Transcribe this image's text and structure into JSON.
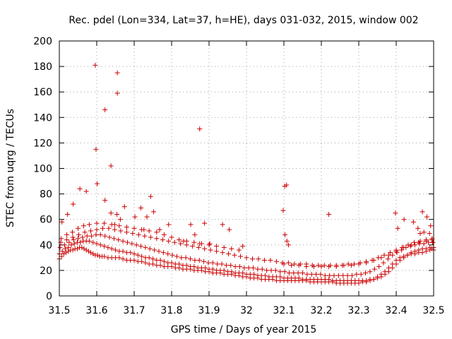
{
  "chart_data": {
    "type": "scatter",
    "title": "Rec. pdel (Lon=334, Lat=37, h=HE), days 031-032, 2015, window 002",
    "xlabel": "GPS time / Days of year 2015",
    "ylabel": "STEC from uqrg / TECUs",
    "xlim": [
      31.5,
      32.5
    ],
    "ylim": [
      0,
      200
    ],
    "xticks": [
      31.5,
      31.6,
      31.7,
      31.8,
      31.9,
      32,
      32.1,
      32.2,
      32.3,
      32.4,
      32.5
    ],
    "xtick_labels": [
      "31.5",
      "31.6",
      "31.7",
      "31.8",
      "31.9",
      "32",
      "32.1",
      "32.2",
      "32.3",
      "32.4",
      "32.5"
    ],
    "yticks": [
      0,
      20,
      40,
      60,
      80,
      100,
      120,
      140,
      160,
      180,
      200
    ],
    "ytick_labels": [
      "0",
      "20",
      "40",
      "60",
      "80",
      "100",
      "120",
      "140",
      "160",
      "180",
      "200"
    ],
    "grid": true,
    "marker": "+",
    "color": "#cc0000",
    "series": [
      {
        "name": "STEC",
        "x": [
          31.5,
          31.506,
          31.512,
          31.518,
          31.524,
          31.53,
          31.536,
          31.542,
          31.548,
          31.554,
          31.56,
          31.566,
          31.572,
          31.578,
          31.584,
          31.59,
          31.596,
          31.602,
          31.608,
          31.614,
          31.62,
          31.63,
          31.64,
          31.65,
          31.66,
          31.67,
          31.68,
          31.69,
          31.7,
          31.71,
          31.72,
          31.73,
          31.74,
          31.75,
          31.76,
          31.77,
          31.78,
          31.79,
          31.8,
          31.81,
          31.82,
          31.83,
          31.84,
          31.85,
          31.86,
          31.87,
          31.88,
          31.89,
          31.9,
          31.91,
          31.92,
          31.93,
          31.94,
          31.95,
          31.96,
          31.97,
          31.98,
          31.99,
          32.0,
          32.01,
          32.02,
          32.03,
          32.04,
          32.05,
          32.06,
          32.07,
          32.08,
          32.09,
          32.1,
          32.11,
          32.12,
          32.13,
          32.14,
          32.15,
          32.16,
          32.17,
          32.18,
          32.19,
          32.2,
          32.21,
          32.22,
          32.23,
          32.24,
          32.25,
          32.26,
          32.27,
          32.28,
          32.29,
          32.3,
          32.31,
          32.32,
          32.33,
          32.34,
          32.35,
          32.36,
          32.37,
          32.38,
          32.39,
          32.4,
          32.41,
          32.42,
          32.43,
          32.44,
          32.45,
          32.46,
          32.47,
          32.48,
          32.49,
          32.5,
          31.5,
          31.508,
          31.516,
          31.524,
          31.532,
          31.54,
          31.548,
          31.556,
          31.564,
          31.572,
          31.58,
          31.59,
          31.6,
          31.61,
          31.62,
          31.63,
          31.64,
          31.65,
          31.66,
          31.67,
          31.68,
          31.69,
          31.7,
          31.71,
          31.72,
          31.73,
          31.74,
          31.75,
          31.76,
          31.77,
          31.78,
          31.79,
          31.8,
          31.81,
          31.82,
          31.83,
          31.84,
          31.85,
          31.86,
          31.87,
          31.88,
          31.89,
          31.9,
          31.91,
          31.92,
          31.93,
          31.94,
          31.95,
          31.96,
          31.97,
          31.98,
          31.99,
          32.0,
          32.01,
          32.02,
          32.03,
          32.04,
          32.05,
          32.06,
          32.07,
          32.08,
          32.09,
          32.1,
          32.11,
          32.12,
          32.13,
          32.14,
          32.15,
          32.16,
          32.17,
          32.18,
          32.19,
          32.2,
          32.21,
          32.22,
          32.23,
          32.24,
          32.25,
          32.26,
          32.27,
          32.28,
          32.29,
          32.3,
          32.31,
          32.32,
          32.33,
          32.34,
          32.35,
          32.36,
          32.37,
          32.38,
          32.39,
          32.4,
          32.41,
          32.42,
          32.43,
          32.44,
          32.45,
          32.46,
          32.47,
          32.48,
          32.49,
          32.5,
          31.502,
          31.514,
          31.526,
          31.538,
          31.55,
          31.562,
          31.574,
          31.586,
          31.598,
          31.61,
          31.622,
          31.634,
          31.646,
          31.658,
          31.67,
          31.682,
          31.694,
          31.706,
          31.718,
          31.73,
          31.742,
          31.754,
          31.766,
          31.778,
          31.79,
          31.802,
          31.814,
          31.826,
          31.838,
          31.85,
          31.862,
          31.874,
          31.886,
          31.898,
          31.91,
          31.922,
          31.934,
          31.946,
          31.958,
          31.97,
          31.982,
          31.994,
          32.006,
          32.018,
          32.03,
          32.042,
          32.054,
          32.066,
          32.078,
          32.09,
          32.102,
          32.114,
          32.126,
          32.138,
          32.15,
          32.162,
          32.174,
          32.186,
          32.198,
          32.21,
          32.222,
          32.234,
          32.246,
          32.258,
          32.27,
          32.282,
          32.294,
          32.306,
          32.318,
          32.33,
          32.342,
          32.354,
          32.366,
          32.378,
          32.39,
          32.402,
          32.414,
          32.426,
          32.438,
          32.45,
          32.462,
          32.474,
          32.486,
          32.498,
          31.504,
          31.52,
          31.536,
          31.552,
          31.568,
          31.584,
          31.6,
          31.616,
          31.632,
          31.648,
          31.664,
          31.68,
          31.696,
          31.712,
          31.728,
          31.744,
          31.76,
          31.776,
          31.792,
          31.808,
          31.824,
          31.84,
          31.856,
          31.872,
          31.888,
          31.904,
          31.92,
          31.936,
          31.952,
          31.968,
          31.984,
          32.0,
          32.016,
          32.032,
          32.048,
          32.064,
          32.08,
          32.096,
          32.112,
          32.128,
          32.144,
          32.16,
          32.176,
          32.192,
          32.208,
          32.224,
          32.24,
          32.256,
          32.272,
          32.288,
          32.304,
          32.32,
          32.336,
          32.352,
          32.368,
          32.384,
          32.4,
          32.416,
          32.432,
          32.448,
          32.464,
          32.48,
          32.496,
          31.505,
          31.52,
          31.535,
          31.55,
          31.565,
          31.58,
          31.6,
          31.62,
          31.64,
          31.66,
          31.68,
          31.7,
          31.72,
          31.74,
          31.76,
          31.78,
          31.8,
          31.82,
          31.84,
          31.86,
          31.88,
          31.9,
          31.92,
          31.94,
          31.96,
          31.98,
          32.1,
          32.12,
          32.14,
          32.16,
          32.18,
          32.2,
          32.22,
          32.24,
          32.26,
          32.28,
          32.3,
          32.32,
          32.34,
          32.36,
          32.38,
          32.4,
          32.42,
          32.44,
          32.46,
          32.48,
          32.495,
          31.507,
          31.522,
          31.537,
          31.555,
          31.572,
          31.601,
          31.622,
          31.638,
          31.648,
          31.654,
          31.663,
          31.674,
          31.702,
          31.718,
          31.726,
          31.734,
          31.744,
          31.752,
          31.768,
          31.792,
          31.832,
          31.851,
          31.862,
          31.875,
          31.888,
          31.902,
          31.936,
          31.954,
          31.99,
          32.098,
          32.103,
          32.108,
          32.112,
          32.22,
          32.398,
          32.404,
          32.421,
          32.446,
          32.458,
          32.464,
          32.47,
          32.474,
          32.482,
          32.489,
          32.492,
          32.497,
          32.495,
          31.596,
          31.598,
          31.622,
          31.638,
          31.655,
          31.655,
          31.875,
          32.102,
          32.107
        ],
        "y": [
          29,
          31,
          33,
          34,
          35,
          36,
          36,
          37,
          37,
          38,
          38,
          37,
          36,
          35,
          34,
          33,
          32,
          32,
          31,
          31,
          31,
          30,
          30,
          30,
          30,
          29,
          28,
          28,
          28,
          27,
          27,
          26,
          25,
          25,
          24,
          24,
          23,
          23,
          23,
          22,
          22,
          21,
          21,
          21,
          20,
          20,
          20,
          19,
          19,
          18,
          18,
          18,
          17,
          17,
          17,
          16,
          16,
          15,
          15,
          14,
          14,
          14,
          13,
          13,
          13,
          13,
          12,
          12,
          12,
          12,
          12,
          12,
          12,
          12,
          12,
          11,
          11,
          11,
          11,
          11,
          11,
          11,
          10,
          10,
          10,
          10,
          10,
          10,
          10,
          11,
          11,
          12,
          13,
          15,
          17,
          19,
          22,
          25,
          28,
          30,
          31,
          32,
          33,
          33,
          34,
          34,
          35,
          36,
          36,
          33,
          35,
          37,
          38,
          40,
          41,
          42,
          42,
          43,
          43,
          43,
          42,
          41,
          40,
          39,
          38,
          37,
          36,
          35,
          35,
          34,
          34,
          33,
          32,
          31,
          30,
          30,
          29,
          28,
          28,
          27,
          26,
          26,
          25,
          25,
          24,
          24,
          23,
          23,
          22,
          22,
          22,
          21,
          21,
          20,
          20,
          20,
          19,
          19,
          18,
          18,
          18,
          17,
          17,
          17,
          16,
          16,
          16,
          15,
          15,
          15,
          15,
          14,
          14,
          14,
          14,
          14,
          13,
          13,
          13,
          13,
          13,
          13,
          13,
          13,
          12,
          12,
          12,
          12,
          12,
          12,
          12,
          12,
          12,
          12,
          13,
          13,
          14,
          15,
          17,
          19,
          22,
          25,
          28,
          30,
          32,
          34,
          35,
          36,
          37,
          37,
          38,
          38,
          38,
          40,
          42,
          44,
          45,
          46,
          47,
          47,
          48,
          48,
          47,
          46,
          45,
          44,
          43,
          42,
          41,
          40,
          39,
          38,
          37,
          36,
          35,
          34,
          33,
          32,
          31,
          30,
          30,
          29,
          28,
          28,
          27,
          26,
          26,
          25,
          25,
          24,
          24,
          23,
          23,
          22,
          22,
          22,
          21,
          21,
          20,
          20,
          20,
          19,
          19,
          18,
          18,
          18,
          18,
          17,
          17,
          17,
          17,
          16,
          16,
          16,
          16,
          16,
          16,
          16,
          17,
          17,
          18,
          19,
          21,
          23,
          26,
          29,
          32,
          34,
          36,
          38,
          39,
          40,
          41,
          41,
          42,
          42,
          42,
          44,
          46,
          48,
          50,
          51,
          52,
          53,
          53,
          52,
          51,
          50,
          49,
          48,
          47,
          46,
          45,
          44,
          43,
          42,
          41,
          40,
          39,
          38,
          37,
          36,
          35,
          34,
          33,
          32,
          31,
          30,
          29,
          29,
          28,
          28,
          27,
          26,
          26,
          25,
          25,
          25,
          24,
          24,
          24,
          24,
          24,
          24,
          25,
          25,
          26,
          27,
          28,
          30,
          32,
          34,
          36,
          38,
          40,
          42,
          43,
          44,
          45,
          45,
          48,
          50,
          53,
          55,
          56,
          57,
          57,
          56,
          55,
          54,
          53,
          52,
          51,
          50,
          48,
          46,
          44,
          43,
          42,
          41,
          40,
          39,
          38,
          37,
          36,
          25,
          24,
          24,
          23,
          23,
          23,
          23,
          23,
          24,
          24,
          25,
          26,
          28,
          30,
          32,
          35,
          38,
          40,
          42,
          43,
          44,
          58,
          64,
          72,
          84,
          82,
          88,
          75,
          65,
          56,
          64,
          60,
          70,
          62,
          69,
          52,
          62,
          78,
          66,
          52,
          56,
          43,
          56,
          48,
          41,
          57,
          41,
          56,
          52,
          39,
          67,
          48,
          43,
          40,
          64,
          65,
          53,
          60,
          58,
          53,
          49,
          66,
          50,
          62,
          49,
          55,
          42,
          37,
          181,
          115,
          146,
          102,
          159,
          175,
          131,
          86,
          87
        ]
      }
    ]
  }
}
